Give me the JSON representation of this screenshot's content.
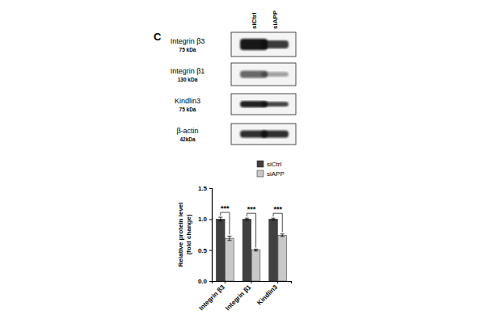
{
  "panel_label": "C",
  "blot": {
    "lanes": [
      "siCtrl",
      "siAPP"
    ],
    "rows": [
      {
        "protein": "Integrin β3",
        "size": "75 kDa"
      },
      {
        "protein": "Integrin β1",
        "size": "130 kDa"
      },
      {
        "protein": "Kindlin3",
        "size": "75 kDa"
      },
      {
        "protein": "β-actin",
        "size": "42kDa"
      }
    ]
  },
  "chart_data": {
    "type": "bar",
    "y_label": [
      "Relative protein level",
      "(fold change)"
    ],
    "categories": [
      "Integrin β3",
      "Integrin β1",
      "Kindlin3"
    ],
    "series": [
      {
        "name": "siCtrl",
        "color": "#404040",
        "values": [
          1.0,
          1.0,
          1.0
        ],
        "errors": [
          0.03,
          0.015,
          0.015
        ]
      },
      {
        "name": "siAPP",
        "color": "#c8c8c8",
        "values": [
          0.69,
          0.5,
          0.74
        ],
        "errors": [
          0.035,
          0.015,
          0.02
        ]
      }
    ],
    "ylim": [
      0,
      1.5
    ],
    "yticks": [
      {
        "value": 0,
        "label": "0.0"
      },
      {
        "value": 0.5,
        "label": "0.5"
      },
      {
        "value": 1,
        "label": "1.0"
      },
      {
        "value": 1.5,
        "label": "1.5"
      }
    ],
    "annotations": [
      {
        "text": "***",
        "category": 0
      },
      {
        "text": "***",
        "category": 1
      },
      {
        "text": "***",
        "category": 2
      }
    ],
    "legend": "top",
    "grid": false
  }
}
